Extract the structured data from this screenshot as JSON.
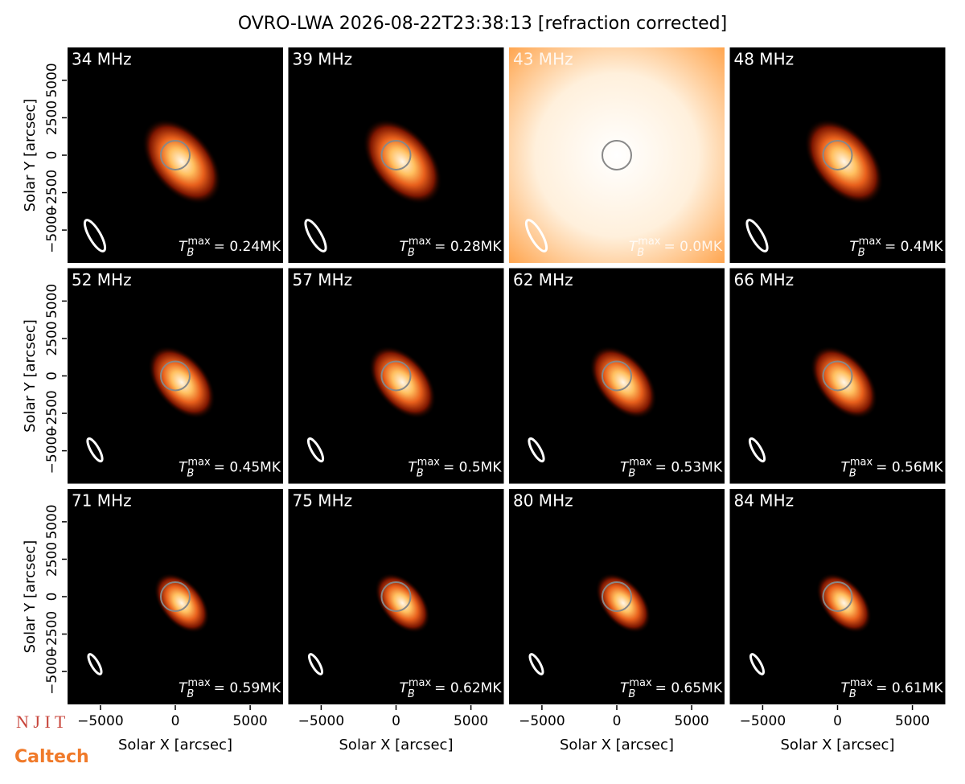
{
  "chart_data": {
    "type": "image",
    "title": "OVRO-LWA 2026-08-22T23:38:13 [refraction corrected]",
    "xlabel": "Solar X [arcsec]",
    "ylabel": "Solar Y [arcsec]",
    "xlim": [
      -7250,
      7250
    ],
    "ylim": [
      -7250,
      7250
    ],
    "xticks": [
      {
        "value": -5000,
        "label": "−5000"
      },
      0,
      5000
    ],
    "yticks": [
      {
        "value": -5000,
        "label": "−5000"
      },
      {
        "value": -2500,
        "label": "−2500"
      },
      0,
      2500,
      5000
    ],
    "tb_symbol": {
      "base": "T",
      "sub": "B",
      "sup": "max"
    },
    "panels": [
      {
        "label": "34 MHz",
        "tmax": "= 0.24MK"
      },
      {
        "label": "39 MHz",
        "tmax": "= 0.28MK"
      },
      {
        "label": "43 MHz",
        "tmax": "= 0.0MK"
      },
      {
        "label": "48 MHz",
        "tmax": "= 0.4MK"
      },
      {
        "label": "52 MHz",
        "tmax": "= 0.45MK"
      },
      {
        "label": "57 MHz",
        "tmax": "= 0.5MK"
      },
      {
        "label": "62 MHz",
        "tmax": "= 0.53MK"
      },
      {
        "label": "66 MHz",
        "tmax": "= 0.56MK"
      },
      {
        "label": "71 MHz",
        "tmax": "= 0.59MK"
      },
      {
        "label": "75 MHz",
        "tmax": "= 0.62MK"
      },
      {
        "label": "80 MHz",
        "tmax": "= 0.65MK"
      },
      {
        "label": "84 MHz",
        "tmax": "= 0.61MK"
      }
    ],
    "logos": [
      "N J I T",
      "Caltech"
    ]
  }
}
